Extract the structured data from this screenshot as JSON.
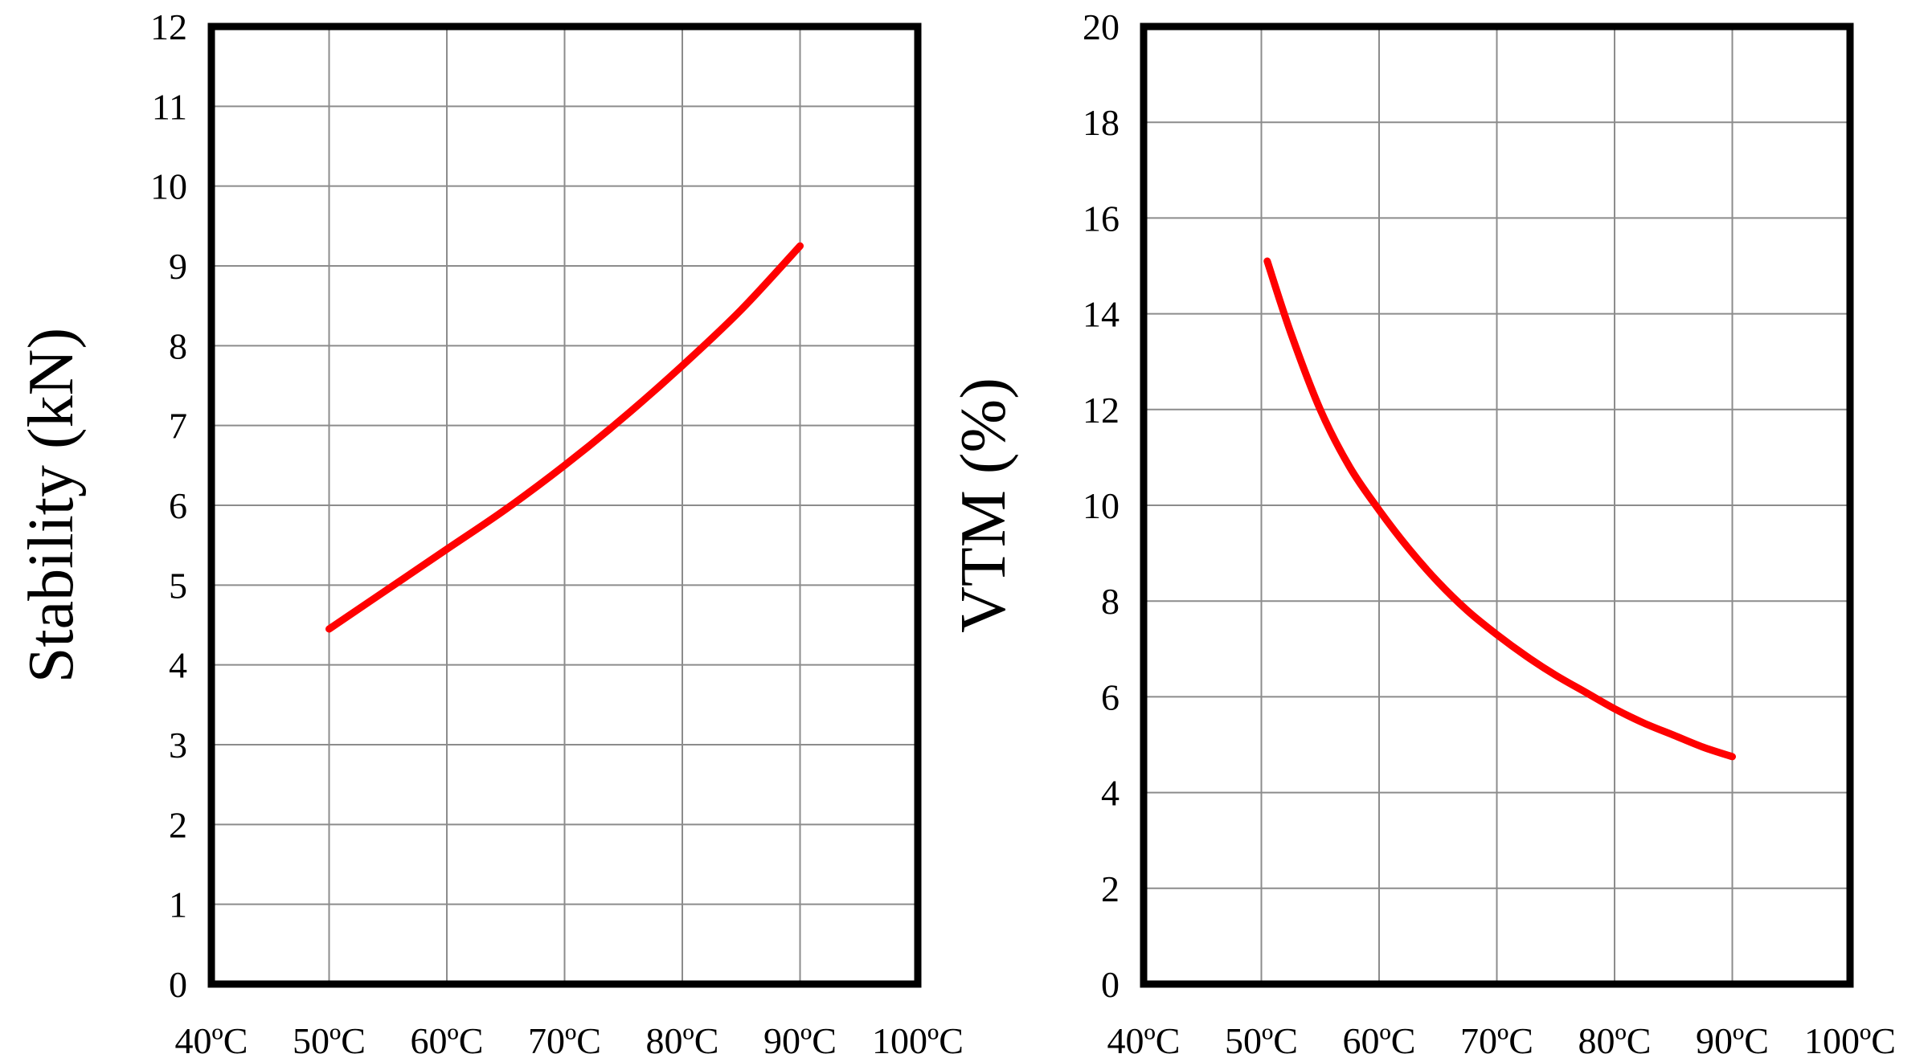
{
  "colors": {
    "curve": "#ff0000",
    "grid": "#8c8c8c",
    "frame": "#000000"
  },
  "chart_data": [
    {
      "type": "line",
      "title": "",
      "xlabel": "",
      "ylabel": "Stability (kN)",
      "x_tick_labels": [
        "40ºC",
        "50ºC",
        "60ºC",
        "70ºC",
        "80ºC",
        "90ºC",
        "100ºC"
      ],
      "xlim": [
        40,
        100
      ],
      "ylim": [
        0,
        12
      ],
      "y_ticks": [
        0,
        1,
        2,
        3,
        4,
        5,
        6,
        7,
        8,
        9,
        10,
        11,
        12
      ],
      "grid": true,
      "legend": "none",
      "series": [
        {
          "x": [
            50,
            55,
            60,
            65,
            70,
            75,
            80,
            85,
            90
          ],
          "y": [
            4.45,
            4.95,
            5.45,
            5.95,
            6.5,
            7.1,
            7.75,
            8.45,
            9.25
          ]
        }
      ]
    },
    {
      "type": "line",
      "title": "",
      "xlabel": "",
      "ylabel": "VTM (%)",
      "x_tick_labels": [
        "40ºC",
        "50ºC",
        "60ºC",
        "70ºC",
        "80ºC",
        "90ºC",
        "100ºC"
      ],
      "xlim": [
        40,
        100
      ],
      "ylim": [
        0,
        20
      ],
      "y_ticks": [
        0,
        2,
        4,
        6,
        8,
        10,
        12,
        14,
        16,
        18,
        20
      ],
      "grid": true,
      "legend": "none",
      "series": [
        {
          "x": [
            50.5,
            52.5,
            55,
            57.5,
            60,
            62.5,
            65,
            67.5,
            70,
            72.5,
            75,
            77.5,
            80,
            82.5,
            85,
            87.5,
            90
          ],
          "y": [
            15.1,
            13.6,
            12.0,
            10.8,
            9.9,
            9.1,
            8.4,
            7.8,
            7.3,
            6.85,
            6.45,
            6.1,
            5.75,
            5.45,
            5.2,
            4.95,
            4.75
          ]
        }
      ]
    }
  ]
}
